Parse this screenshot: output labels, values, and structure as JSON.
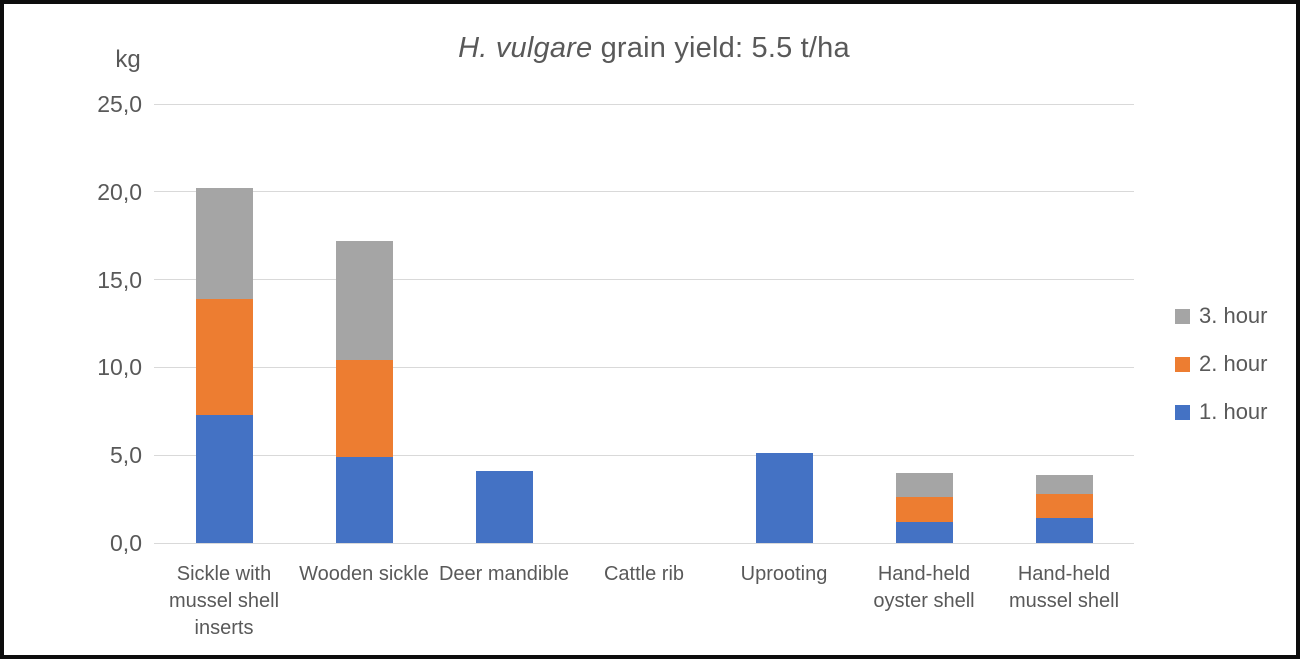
{
  "title": {
    "italic_part": "H. vulgare",
    "regular_part": " grain yield: 5.5 t/ha",
    "full": "H. vulgare grain yield: 5.5 t/ha"
  },
  "colors": {
    "text": "#595959",
    "gridline": "#d9d9d9",
    "frame_border": "#0d0d0d",
    "series_blue": "#4472C4",
    "series_orange": "#ED7D31",
    "series_gray": "#A5A5A5"
  },
  "chart_data": {
    "type": "bar",
    "stacked": true,
    "title": "H. vulgare grain yield: 5.5 t/ha",
    "xlabel": "",
    "ylabel": "kg",
    "ylim": [
      0,
      25
    ],
    "ytick_values": [
      0,
      5,
      10,
      15,
      20,
      25
    ],
    "ytick_labels": [
      "0,0",
      "5,0",
      "10,0",
      "15,0",
      "20,0",
      "25,0"
    ],
    "grid": true,
    "legend_position": "right",
    "categories": [
      "Sickle with mussel shell inserts",
      "Wooden sickle",
      "Deer mandible",
      "Cattle rib",
      "Uprooting",
      "Hand-held oyster shell",
      "Hand-held mussel shell"
    ],
    "series": [
      {
        "name": "1. hour",
        "color": "#4472C4",
        "values": [
          7.3,
          4.9,
          4.1,
          0,
          5.1,
          1.2,
          1.4
        ]
      },
      {
        "name": "2. hour",
        "color": "#ED7D31",
        "values": [
          6.6,
          5.5,
          0,
          0,
          0,
          1.4,
          1.4
        ]
      },
      {
        "name": "3. hour",
        "color": "#A5A5A5",
        "values": [
          6.3,
          6.8,
          0,
          0,
          0,
          1.4,
          1.1
        ]
      }
    ],
    "legend": [
      {
        "label": "3. hour",
        "color": "#A5A5A5"
      },
      {
        "label": "2. hour",
        "color": "#ED7D31"
      },
      {
        "label": "1. hour",
        "color": "#4472C4"
      }
    ]
  }
}
